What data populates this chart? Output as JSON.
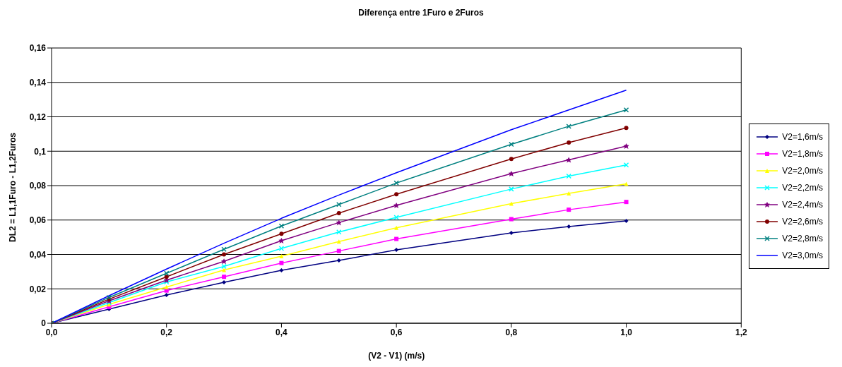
{
  "chart_data": {
    "type": "line",
    "title": "Diferença entre 1Furo e 2Furos",
    "xlabel": "(V2 - V1) (m/s)",
    "ylabel": "DL2 = L1,1Furo - L1,2Furos",
    "x": [
      0,
      0.1,
      0.2,
      0.3,
      0.4,
      0.5,
      0.6,
      0.8,
      0.9,
      1.0
    ],
    "xlim": [
      0,
      1.2
    ],
    "xticks": [
      {
        "value": 0,
        "label": "0,0"
      },
      {
        "value": 0.2,
        "label": "0,2"
      },
      {
        "value": 0.4,
        "label": "0,4"
      },
      {
        "value": 0.6,
        "label": "0,6"
      },
      {
        "value": 0.8,
        "label": "0,8"
      },
      {
        "value": 1.0,
        "label": "1,0"
      },
      {
        "value": 1.2,
        "label": "1,2"
      }
    ],
    "ylim": [
      0,
      0.16
    ],
    "yticks": [
      0,
      {
        "value": 0.02,
        "label": "0,02"
      },
      {
        "value": 0.04,
        "label": "0,04"
      },
      {
        "value": 0.06,
        "label": "0,06"
      },
      {
        "value": 0.08,
        "label": "0,08"
      },
      {
        "value": 0.1,
        "label": "0,1"
      },
      {
        "value": 0.12,
        "label": "0,12"
      },
      {
        "value": 0.14,
        "label": "0,14"
      },
      {
        "value": 0.16,
        "label": "0,16"
      }
    ],
    "grid": "y",
    "legend": "right",
    "line_style": "solid",
    "series": [
      {
        "name": "V2=1,6m/s",
        "color": "#000080",
        "marker": "diamond",
        "values": [
          0,
          0.0082,
          0.0164,
          0.0238,
          0.0308,
          0.0365,
          0.0427,
          0.0525,
          0.0562,
          0.0595
        ]
      },
      {
        "name": "V2=1,8m/s",
        "color": "#ff00ff",
        "marker": "square",
        "values": [
          0,
          0.0095,
          0.019,
          0.027,
          0.035,
          0.042,
          0.049,
          0.0605,
          0.066,
          0.0705
        ]
      },
      {
        "name": "V2=2,0m/s",
        "color": "#ffff00",
        "marker": "triangle",
        "values": [
          0,
          0.011,
          0.021,
          0.031,
          0.039,
          0.0475,
          0.0555,
          0.0695,
          0.0755,
          0.081
        ]
      },
      {
        "name": "V2=2,2m/s",
        "color": "#00ffff",
        "marker": "cross",
        "values": [
          0,
          0.012,
          0.024,
          0.033,
          0.0435,
          0.053,
          0.0615,
          0.078,
          0.0855,
          0.092
        ]
      },
      {
        "name": "V2=2,4m/s",
        "color": "#800080",
        "marker": "star",
        "values": [
          0,
          0.013,
          0.025,
          0.036,
          0.048,
          0.0585,
          0.0685,
          0.087,
          0.095,
          0.103
        ]
      },
      {
        "name": "V2=2,6m/s",
        "color": "#800000",
        "marker": "circle",
        "values": [
          0,
          0.014,
          0.027,
          0.04,
          0.052,
          0.064,
          0.075,
          0.0955,
          0.105,
          0.1135
        ]
      },
      {
        "name": "V2=2,8m/s",
        "color": "#008080",
        "marker": "cross",
        "values": [
          0,
          0.015,
          0.029,
          0.043,
          0.0565,
          0.069,
          0.0815,
          0.104,
          0.1145,
          0.124
        ]
      },
      {
        "name": "V2=3,0m/s",
        "color": "#0000ff",
        "marker": "none",
        "values": [
          0,
          0.016,
          0.0315,
          0.0465,
          0.061,
          0.0745,
          0.0875,
          0.1125,
          0.124,
          0.1355
        ]
      }
    ]
  }
}
